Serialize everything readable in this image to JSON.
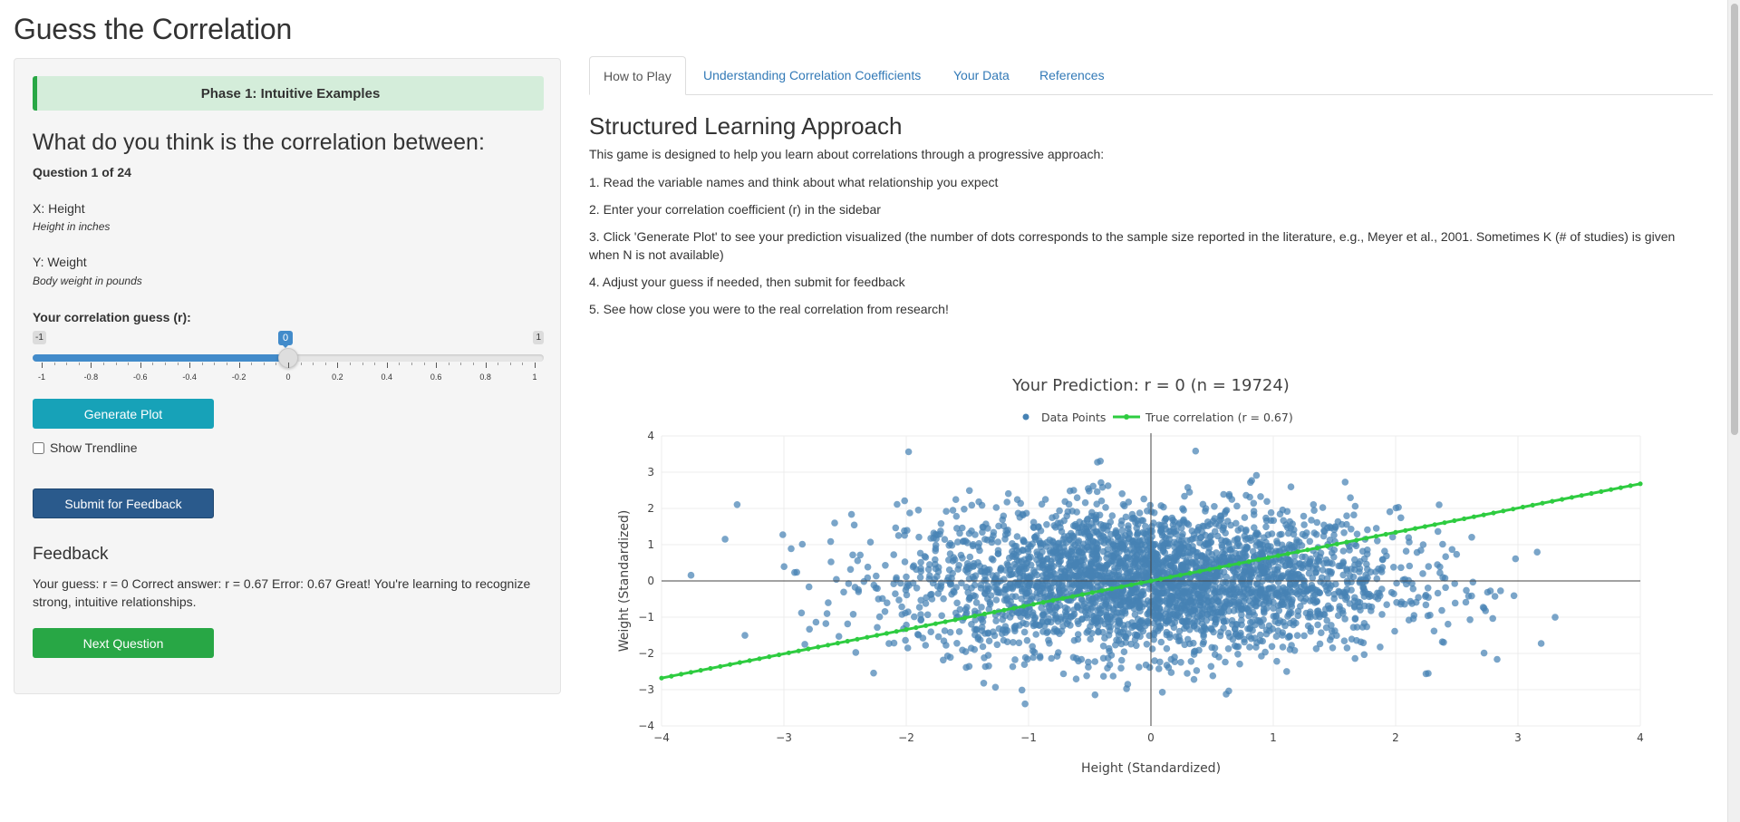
{
  "app": {
    "title": "Guess the Correlation"
  },
  "sidebar": {
    "phase": "Phase 1: Intuitive Examples",
    "question_heading": "What do you think is the correlation between:",
    "question_count": "Question 1 of 24",
    "x_var": {
      "name": "X: Height",
      "description": "Height in inches"
    },
    "y_var": {
      "name": "Y: Weight",
      "description": "Body weight in pounds"
    },
    "guess_label": "Your correlation guess (r):",
    "slider": {
      "min_label": "-1",
      "max_label": "1",
      "value_label": "0",
      "value": 0,
      "ticks": [
        "-1",
        "-0.8",
        "-0.6",
        "-0.4",
        "-0.2",
        "0",
        "0.2",
        "0.4",
        "0.6",
        "0.8",
        "1"
      ]
    },
    "generate_label": "Generate Plot",
    "trendline_label": "Show Trendline",
    "submit_label": "Submit for Feedback",
    "feedback_title": "Feedback",
    "feedback_text": "Your guess: r = 0 Correct answer: r = 0.67 Error: 0.67 Great! You're learning to recognize strong, intuitive relationships.",
    "next_label": "Next Question"
  },
  "tabs": [
    {
      "label": "How to Play",
      "active": true
    },
    {
      "label": "Understanding Correlation Coefficients",
      "active": false
    },
    {
      "label": "Your Data",
      "active": false
    },
    {
      "label": "References",
      "active": false
    }
  ],
  "main": {
    "heading": "Structured Learning Approach",
    "intro": "This game is designed to help you learn about correlations through a progressive approach:",
    "steps": [
      "1. Read the variable names and think about what relationship you expect",
      "2. Enter your correlation coefficient (r) in the sidebar",
      "3. Click 'Generate Plot' to see your prediction visualized (the number of dots corresponds to the sample size reported in the literature, e.g., Meyer et al., 2001. Sometimes K (# of studies) is given when N is not available)",
      "4. Adjust your guess if needed, then submit for feedback",
      "5. See how close you were to the real correlation from research!"
    ]
  },
  "colors": {
    "points": "#4682b4",
    "trend": "#2ecc40",
    "accent": "#428bca"
  },
  "chart_data": {
    "type": "scatter",
    "title": "Your Prediction: r = 0 (n = 19724)",
    "xlabel": "Height (Standardized)",
    "ylabel": "Weight (Standardized)",
    "xlim": [
      -4,
      4
    ],
    "ylim": [
      -4,
      4
    ],
    "x_ticks": [
      "−4",
      "−3",
      "−2",
      "−1",
      "0",
      "1",
      "2",
      "3",
      "4"
    ],
    "y_ticks": [
      "−4",
      "−3",
      "−2",
      "−1",
      "0",
      "1",
      "2",
      "3",
      "4"
    ],
    "grid": true,
    "legend_placement": "top-center",
    "series": [
      {
        "name": "Data Points",
        "kind": "scatter",
        "n": 19724,
        "r": 0
      },
      {
        "name": "True correlation (r = 0.67)",
        "kind": "line",
        "x": [
          -4,
          4
        ],
        "y": [
          -2.68,
          2.68
        ]
      }
    ]
  }
}
